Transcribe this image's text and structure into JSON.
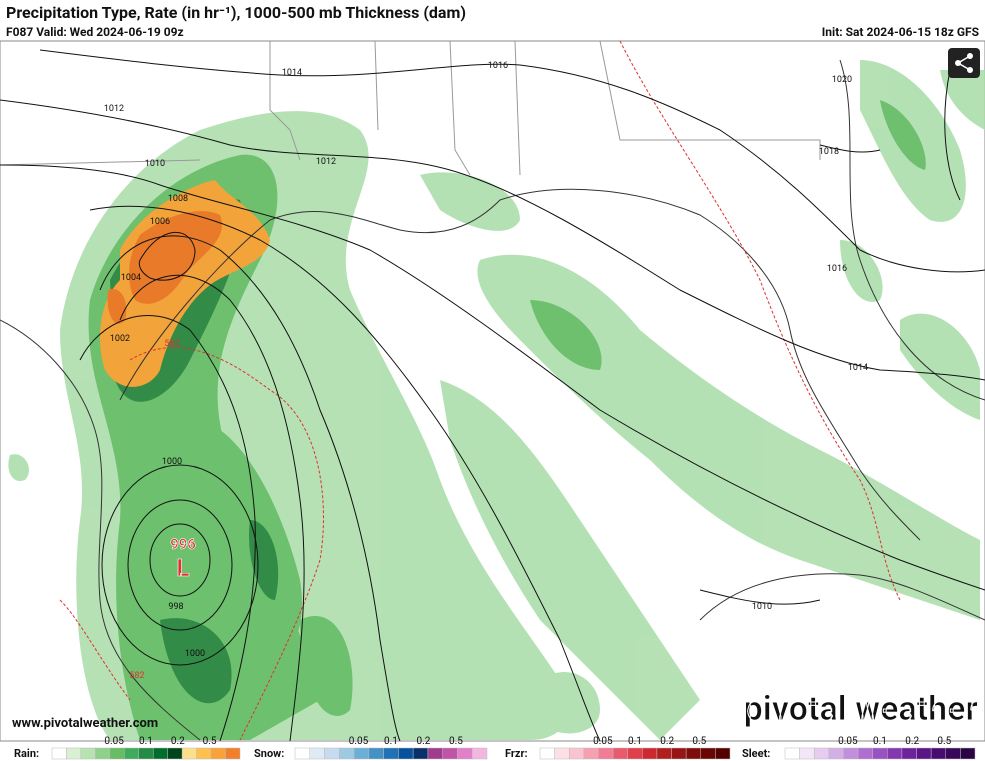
{
  "header": {
    "title": "Precipitation Type, Rate (in hr⁻¹), 1000-500 mb Thickness (dam)",
    "valid": "F087 Valid: Wed 2024-06-19 09z",
    "init": "Init: Sat 2024-06-15 18z GFS"
  },
  "map": {
    "isobar_labels": [
      "1014",
      "1016",
      "1012",
      "1012",
      "1010",
      "1008",
      "1006",
      "1004",
      "1002",
      "1000",
      "998",
      "1000",
      "1020",
      "1018",
      "1016",
      "1014",
      "1010"
    ],
    "thickness_labels": [
      "582",
      "582"
    ],
    "low": {
      "pressure": "996",
      "symbol": "L"
    }
  },
  "footer": {
    "url": "www.pivotalweather.com",
    "logo": "pivotal weather"
  },
  "legend": [
    {
      "name": "Rain:",
      "ticks": [
        "0.05",
        "0.1",
        "0.2",
        "0.5"
      ]
    },
    {
      "name": "Snow:",
      "ticks": [
        "0.05",
        "0.1",
        "0.2",
        "0.5"
      ]
    },
    {
      "name": "Frzr:",
      "ticks": [
        "0.05",
        "0.1",
        "0.2",
        "0.5"
      ]
    },
    {
      "name": "Sleet:",
      "ticks": [
        "0.05",
        "0.1",
        "0.2",
        "0.5"
      ]
    }
  ]
}
